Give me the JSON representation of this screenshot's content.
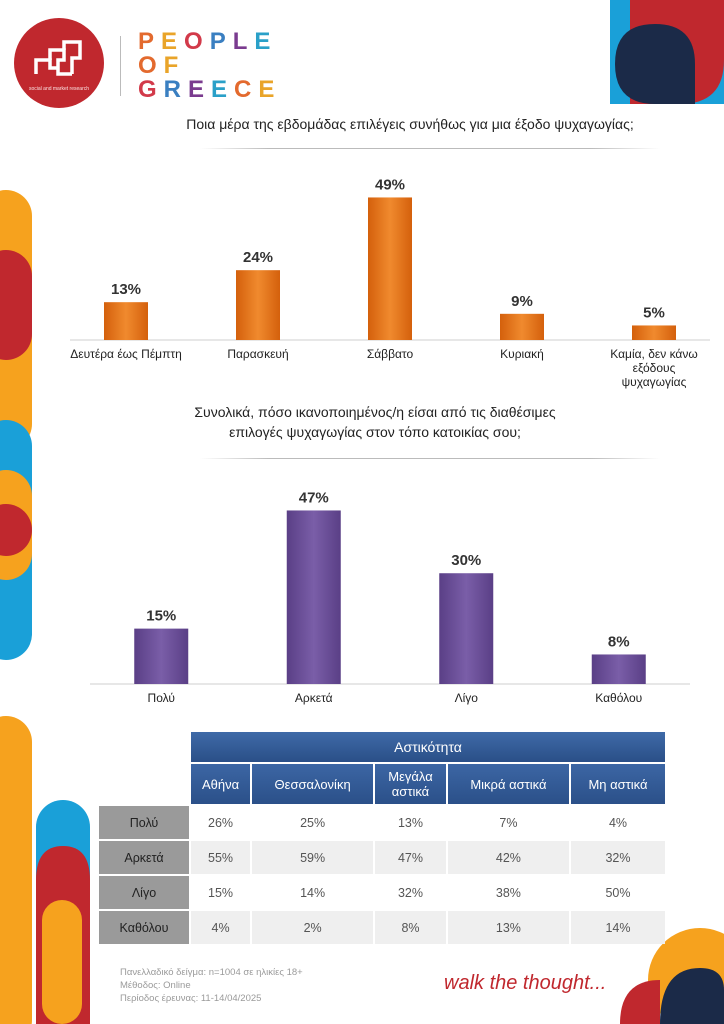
{
  "brand": {
    "small_text": "social and market research",
    "title_lines": [
      "PEOPLE",
      "OF",
      "GREECE"
    ],
    "letter_colors": [
      "#e36a2e",
      "#e9a429",
      "#d23a4a",
      "#3a7fc1",
      "#7a3b8f",
      "#2aa0c8"
    ]
  },
  "chart_data": [
    {
      "type": "bar",
      "title": "Ποια μέρα της εβδομάδας επιλέγεις συνήθως για μια έξοδο ψυχαγωγίας;",
      "categories": [
        "Δευτέρα έως Πέμπτη",
        "Παρασκευή",
        "Σάββατο",
        "Κυριακή",
        "Καμία, δεν κάνω εξόδους ψυχαγωγίας"
      ],
      "values": [
        13,
        24,
        49,
        9,
        5
      ],
      "value_labels": [
        "13%",
        "24%",
        "49%",
        "9%",
        "5%"
      ],
      "ylim": [
        0,
        55
      ],
      "grid": false,
      "color": "#e8751a"
    },
    {
      "type": "bar",
      "title": "Συνολικά, πόσο ικανοποιημένος/η είσαι από τις διαθέσιμες επιλογές ψυχαγωγίας στον τόπο κατοικίας σου;",
      "categories": [
        "Πολύ",
        "Αρκετά",
        "Λίγο",
        "Καθόλου"
      ],
      "values": [
        15,
        47,
        30,
        8
      ],
      "value_labels": [
        "15%",
        "47%",
        "30%",
        "8%"
      ],
      "ylim": [
        0,
        52
      ],
      "grid": false,
      "color": "#6a4d96"
    },
    {
      "type": "table",
      "title": "Αστικότητα",
      "columns": [
        "Αθήνα",
        "Θεσσαλονίκη",
        "Μεγάλα αστικά",
        "Μικρά αστικά",
        "Μη αστικά"
      ],
      "rows": [
        {
          "label": "Πολύ",
          "values": [
            "26%",
            "25%",
            "13%",
            "7%",
            "4%"
          ]
        },
        {
          "label": "Αρκετά",
          "values": [
            "55%",
            "59%",
            "47%",
            "42%",
            "32%"
          ]
        },
        {
          "label": "Λίγο",
          "values": [
            "15%",
            "14%",
            "32%",
            "38%",
            "50%"
          ]
        },
        {
          "label": "Καθόλου",
          "values": [
            "4%",
            "2%",
            "8%",
            "13%",
            "14%"
          ]
        }
      ]
    }
  ],
  "chart1_label_lines": [
    [
      "Δευτέρα έως Πέμπτη"
    ],
    [
      "Παρασκευή"
    ],
    [
      "Σάββατο"
    ],
    [
      "Κυριακή"
    ],
    [
      "Καμία, δεν κάνω",
      "εξόδους",
      "ψυχαγωγίας"
    ]
  ],
  "q2_lines": [
    "Συνολικά, πόσο ικανοποιημένος/η είσαι από τις διαθέσιμες",
    "επιλογές ψυχαγωγίας στον τόπο κατοικίας σου;"
  ],
  "table_col_lines": [
    [
      "Αθήνα"
    ],
    [
      "Θεσσαλονίκη"
    ],
    [
      "Μεγάλα",
      "αστικά"
    ],
    [
      "Μικρά αστικά"
    ],
    [
      "Μη αστικά"
    ]
  ],
  "footer": {
    "notes": [
      "Πανελλαδικό δείγμα: n=1004 σε ηλικίες 18+",
      "Μέθοδος: Online",
      "Περίοδος έρευνας: 11-14/04/2025"
    ],
    "tagline": "walk the thought..."
  },
  "colors": {
    "red": "#c0282e",
    "orange": "#f6a21e",
    "blue": "#1aa0d8",
    "navy": "#1b2a48",
    "bar_orange": "#e8751a",
    "bar_purple": "#6a4d96",
    "table_header": "#2f5590"
  }
}
